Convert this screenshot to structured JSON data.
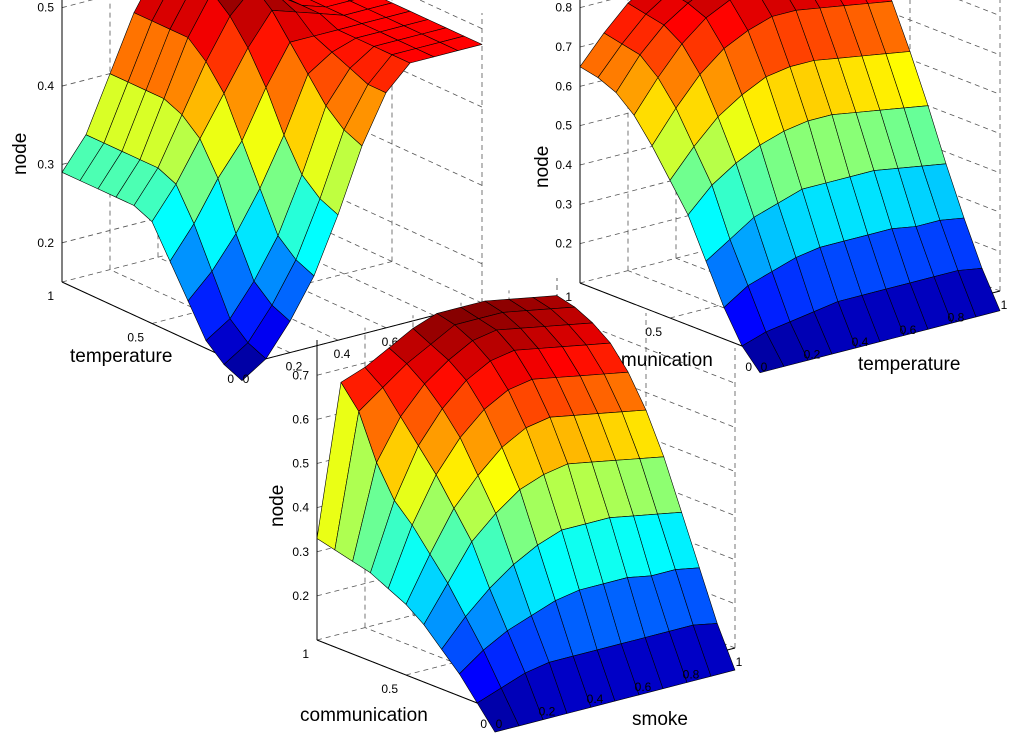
{
  "chart_data": [
    {
      "type": "surface",
      "title": "",
      "xlabel": "temperature",
      "ylabel": "smoke",
      "zlabel": "node",
      "xlim": [
        0,
        1
      ],
      "ylim": [
        0,
        1
      ],
      "zlim": [
        0.15,
        0.52
      ],
      "x_ticks": [
        "0",
        "0.5",
        "1"
      ],
      "y_ticks": [
        "0",
        "0.2",
        "0.4",
        "0.6",
        "0.8",
        "1"
      ],
      "z_ticks": [
        "0.2",
        "0.3",
        "0.4",
        "0.5"
      ],
      "grid": true,
      "colormap": "jet",
      "x": [
        0,
        0.1,
        0.2,
        0.3,
        0.4,
        0.5,
        0.6,
        0.7,
        0.8,
        0.9,
        1.0
      ],
      "y": [
        0,
        0.1,
        0.2,
        0.3,
        0.4,
        0.5,
        0.6,
        0.7,
        0.8,
        0.9,
        1.0
      ],
      "z": [
        [
          0.13,
          0.15,
          0.19,
          0.24,
          0.31,
          0.39,
          0.45,
          0.48,
          0.48,
          0.48,
          0.48
        ],
        [
          0.14,
          0.16,
          0.2,
          0.25,
          0.32,
          0.4,
          0.45,
          0.48,
          0.48,
          0.48,
          0.48
        ],
        [
          0.16,
          0.18,
          0.22,
          0.27,
          0.34,
          0.42,
          0.46,
          0.48,
          0.48,
          0.48,
          0.48
        ],
        [
          0.2,
          0.23,
          0.27,
          0.32,
          0.38,
          0.45,
          0.47,
          0.48,
          0.48,
          0.48,
          0.48
        ],
        [
          0.24,
          0.28,
          0.33,
          0.37,
          0.43,
          0.48,
          0.48,
          0.48,
          0.48,
          0.48,
          0.48
        ],
        [
          0.28,
          0.32,
          0.37,
          0.42,
          0.47,
          0.51,
          0.5,
          0.49,
          0.48,
          0.48,
          0.48
        ],
        [
          0.29,
          0.33,
          0.39,
          0.45,
          0.5,
          0.53,
          0.51,
          0.49,
          0.48,
          0.48,
          0.48
        ],
        [
          0.29,
          0.33,
          0.4,
          0.47,
          0.52,
          0.53,
          0.51,
          0.49,
          0.48,
          0.48,
          0.48
        ],
        [
          0.29,
          0.33,
          0.4,
          0.47,
          0.52,
          0.53,
          0.51,
          0.49,
          0.48,
          0.48,
          0.48
        ],
        [
          0.29,
          0.33,
          0.4,
          0.47,
          0.52,
          0.53,
          0.51,
          0.49,
          0.48,
          0.48,
          0.48
        ],
        [
          0.29,
          0.33,
          0.4,
          0.47,
          0.52,
          0.53,
          0.51,
          0.49,
          0.48,
          0.48,
          0.48
        ]
      ]
    },
    {
      "type": "surface",
      "title": "",
      "xlabel": "communication",
      "ylabel": "temperature",
      "zlabel": "node",
      "xlim": [
        0,
        1
      ],
      "ylim": [
        0,
        1
      ],
      "zlim": [
        0.1,
        0.85
      ],
      "x_ticks": [
        "0",
        "0.5",
        "1"
      ],
      "y_ticks": [
        "0",
        "0.2",
        "0.4",
        "0.6",
        "0.8",
        "1"
      ],
      "z_ticks": [
        "0.2",
        "0.3",
        "0.4",
        "0.5",
        "0.6",
        "0.7",
        "0.8"
      ],
      "grid": true,
      "colormap": "jet",
      "x": [
        0,
        0.1,
        0.2,
        0.3,
        0.4,
        0.5,
        0.6,
        0.7,
        0.8,
        0.9,
        1.0
      ],
      "y": [
        0,
        0.1,
        0.2,
        0.3,
        0.4,
        0.5,
        0.6,
        0.7,
        0.8,
        0.9,
        1.0
      ],
      "z": [
        [
          0.05,
          0.05,
          0.05,
          0.05,
          0.05,
          0.05,
          0.05,
          0.05,
          0.05,
          0.05,
          0.05
        ],
        [
          0.1,
          0.12,
          0.13,
          0.14,
          0.15,
          0.15,
          0.15,
          0.15,
          0.15,
          0.15,
          0.14
        ],
        [
          0.18,
          0.22,
          0.24,
          0.26,
          0.27,
          0.27,
          0.27,
          0.27,
          0.26,
          0.26,
          0.25
        ],
        [
          0.28,
          0.32,
          0.36,
          0.38,
          0.4,
          0.4,
          0.4,
          0.4,
          0.39,
          0.38,
          0.37
        ],
        [
          0.38,
          0.44,
          0.48,
          0.51,
          0.53,
          0.54,
          0.54,
          0.53,
          0.52,
          0.51,
          0.5
        ],
        [
          0.45,
          0.52,
          0.58,
          0.62,
          0.65,
          0.66,
          0.66,
          0.65,
          0.64,
          0.63,
          0.62
        ],
        [
          0.52,
          0.6,
          0.67,
          0.72,
          0.75,
          0.77,
          0.77,
          0.76,
          0.75,
          0.74,
          0.73
        ],
        [
          0.58,
          0.66,
          0.73,
          0.78,
          0.81,
          0.83,
          0.83,
          0.82,
          0.81,
          0.8,
          0.79
        ],
        [
          0.62,
          0.7,
          0.76,
          0.8,
          0.83,
          0.85,
          0.85,
          0.84,
          0.83,
          0.82,
          0.81
        ],
        [
          0.64,
          0.71,
          0.77,
          0.81,
          0.84,
          0.86,
          0.86,
          0.85,
          0.84,
          0.83,
          0.82
        ],
        [
          0.65,
          0.72,
          0.78,
          0.82,
          0.85,
          0.87,
          0.87,
          0.86,
          0.85,
          0.84,
          0.83
        ]
      ]
    },
    {
      "type": "surface",
      "title": "",
      "xlabel": "communication",
      "ylabel": "smoke",
      "zlabel": "node",
      "xlim": [
        0,
        1
      ],
      "ylim": [
        0,
        1
      ],
      "zlim": [
        0.1,
        0.78
      ],
      "x_ticks": [
        "0",
        "0.5",
        "1"
      ],
      "y_ticks": [
        "0",
        "0.2",
        "0.4",
        "0.6",
        "0.8",
        "1"
      ],
      "z_ticks": [
        "0.2",
        "0.3",
        "0.4",
        "0.5",
        "0.6",
        "0.7"
      ],
      "grid": true,
      "colormap": "jet",
      "x": [
        0,
        0.1,
        0.2,
        0.3,
        0.4,
        0.5,
        0.6,
        0.7,
        0.8,
        0.9,
        1.0
      ],
      "y": [
        0,
        0.1,
        0.2,
        0.3,
        0.4,
        0.5,
        0.6,
        0.7,
        0.8,
        0.9,
        1.0
      ],
      "z": [
        [
          0.05,
          0.05,
          0.05,
          0.05,
          0.05,
          0.05,
          0.05,
          0.05,
          0.05,
          0.05,
          0.05
        ],
        [
          0.1,
          0.12,
          0.14,
          0.15,
          0.15,
          0.15,
          0.15,
          0.15,
          0.15,
          0.15,
          0.14
        ],
        [
          0.15,
          0.19,
          0.22,
          0.24,
          0.26,
          0.27,
          0.27,
          0.27,
          0.26,
          0.26,
          0.25
        ],
        [
          0.19,
          0.25,
          0.3,
          0.34,
          0.37,
          0.39,
          0.39,
          0.39,
          0.38,
          0.37,
          0.36
        ],
        [
          0.23,
          0.31,
          0.39,
          0.44,
          0.48,
          0.5,
          0.51,
          0.5,
          0.49,
          0.48,
          0.47
        ],
        [
          0.26,
          0.36,
          0.45,
          0.51,
          0.56,
          0.59,
          0.6,
          0.59,
          0.58,
          0.57,
          0.56
        ],
        [
          0.28,
          0.41,
          0.51,
          0.58,
          0.63,
          0.66,
          0.67,
          0.66,
          0.65,
          0.64,
          0.63
        ],
        [
          0.3,
          0.45,
          0.56,
          0.63,
          0.68,
          0.71,
          0.72,
          0.71,
          0.7,
          0.69,
          0.68
        ],
        [
          0.31,
          0.52,
          0.61,
          0.67,
          0.71,
          0.74,
          0.75,
          0.74,
          0.73,
          0.72,
          0.71
        ],
        [
          0.32,
          0.62,
          0.66,
          0.7,
          0.73,
          0.76,
          0.76,
          0.76,
          0.75,
          0.74,
          0.73
        ],
        [
          0.33,
          0.67,
          0.69,
          0.72,
          0.75,
          0.77,
          0.77,
          0.77,
          0.76,
          0.75,
          0.74
        ]
      ]
    }
  ]
}
